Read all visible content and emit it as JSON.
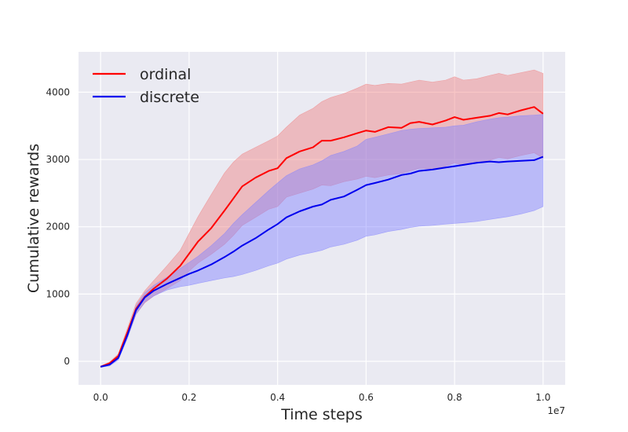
{
  "chart_data": {
    "type": "line",
    "title": "",
    "xlabel": "Time steps",
    "ylabel": "Cumulative rewards",
    "x_offset_label": "1e7",
    "xlim": [
      -0.05,
      1.05
    ],
    "ylim": [
      -350,
      4600
    ],
    "xticks": [
      0.0,
      0.2,
      0.4,
      0.6,
      0.8,
      1.0
    ],
    "xtick_labels": [
      "0.0",
      "0.2",
      "0.4",
      "0.6",
      "0.8",
      "1.0"
    ],
    "yticks": [
      0,
      1000,
      2000,
      3000,
      4000
    ],
    "ytick_labels": [
      "0",
      "1000",
      "2000",
      "3000",
      "4000"
    ],
    "grid": true,
    "legend_position": "top-left",
    "series": [
      {
        "name": "ordinal",
        "color": "#ff0000",
        "band_color": "#f08080",
        "x": [
          0.0,
          0.02,
          0.04,
          0.06,
          0.08,
          0.1,
          0.12,
          0.15,
          0.18,
          0.2,
          0.22,
          0.25,
          0.28,
          0.3,
          0.32,
          0.35,
          0.38,
          0.4,
          0.42,
          0.45,
          0.48,
          0.5,
          0.52,
          0.55,
          0.58,
          0.6,
          0.62,
          0.65,
          0.68,
          0.7,
          0.72,
          0.75,
          0.78,
          0.8,
          0.82,
          0.85,
          0.88,
          0.9,
          0.92,
          0.95,
          0.98,
          1.0
        ],
        "mean": [
          -80,
          -30,
          80,
          420,
          780,
          960,
          1080,
          1230,
          1420,
          1600,
          1780,
          1980,
          2240,
          2420,
          2600,
          2730,
          2830,
          2870,
          3020,
          3120,
          3180,
          3280,
          3280,
          3330,
          3390,
          3430,
          3410,
          3480,
          3470,
          3540,
          3560,
          3520,
          3580,
          3630,
          3590,
          3620,
          3650,
          3690,
          3670,
          3730,
          3780,
          3680
        ],
        "upper": [
          -70,
          -10,
          110,
          480,
          860,
          1050,
          1200,
          1420,
          1650,
          1900,
          2150,
          2480,
          2800,
          2960,
          3080,
          3180,
          3280,
          3350,
          3480,
          3660,
          3760,
          3860,
          3920,
          3980,
          4060,
          4120,
          4100,
          4130,
          4120,
          4150,
          4180,
          4150,
          4180,
          4230,
          4180,
          4200,
          4250,
          4280,
          4250,
          4290,
          4330,
          4280
        ],
        "lower": [
          -90,
          -50,
          50,
          360,
          700,
          870,
          970,
          1080,
          1200,
          1340,
          1460,
          1590,
          1740,
          1870,
          2020,
          2140,
          2260,
          2300,
          2440,
          2500,
          2560,
          2620,
          2610,
          2670,
          2710,
          2750,
          2730,
          2770,
          2790,
          2830,
          2870,
          2860,
          2900,
          2950,
          2910,
          2950,
          2990,
          3030,
          3010,
          3060,
          3100,
          3020
        ]
      },
      {
        "name": "discrete",
        "color": "#0000ee",
        "band_color": "#8080ff",
        "x": [
          0.0,
          0.02,
          0.04,
          0.06,
          0.08,
          0.1,
          0.12,
          0.15,
          0.18,
          0.2,
          0.22,
          0.25,
          0.28,
          0.3,
          0.32,
          0.35,
          0.38,
          0.4,
          0.42,
          0.45,
          0.48,
          0.5,
          0.52,
          0.55,
          0.58,
          0.6,
          0.62,
          0.65,
          0.68,
          0.7,
          0.72,
          0.75,
          0.78,
          0.8,
          0.82,
          0.85,
          0.88,
          0.9,
          0.92,
          0.95,
          0.98,
          1.0
        ],
        "mean": [
          -80,
          -50,
          50,
          380,
          760,
          950,
          1050,
          1150,
          1240,
          1300,
          1350,
          1440,
          1550,
          1630,
          1720,
          1830,
          1960,
          2040,
          2140,
          2230,
          2300,
          2330,
          2400,
          2450,
          2550,
          2620,
          2650,
          2700,
          2770,
          2790,
          2830,
          2850,
          2880,
          2900,
          2920,
          2950,
          2970,
          2960,
          2970,
          2980,
          2990,
          3040
        ],
        "upper": [
          -70,
          -30,
          80,
          430,
          820,
          1020,
          1130,
          1250,
          1380,
          1470,
          1560,
          1720,
          1900,
          2050,
          2180,
          2360,
          2540,
          2650,
          2760,
          2860,
          2920,
          2980,
          3060,
          3120,
          3200,
          3300,
          3330,
          3380,
          3430,
          3450,
          3460,
          3470,
          3480,
          3500,
          3510,
          3560,
          3600,
          3620,
          3630,
          3650,
          3660,
          3670
        ],
        "lower": [
          -90,
          -70,
          20,
          330,
          700,
          880,
          970,
          1060,
          1110,
          1130,
          1160,
          1200,
          1240,
          1260,
          1290,
          1350,
          1420,
          1460,
          1520,
          1580,
          1620,
          1650,
          1700,
          1740,
          1800,
          1860,
          1880,
          1930,
          1960,
          1990,
          2010,
          2020,
          2040,
          2050,
          2060,
          2080,
          2110,
          2130,
          2150,
          2190,
          2240,
          2300
        ]
      }
    ]
  }
}
